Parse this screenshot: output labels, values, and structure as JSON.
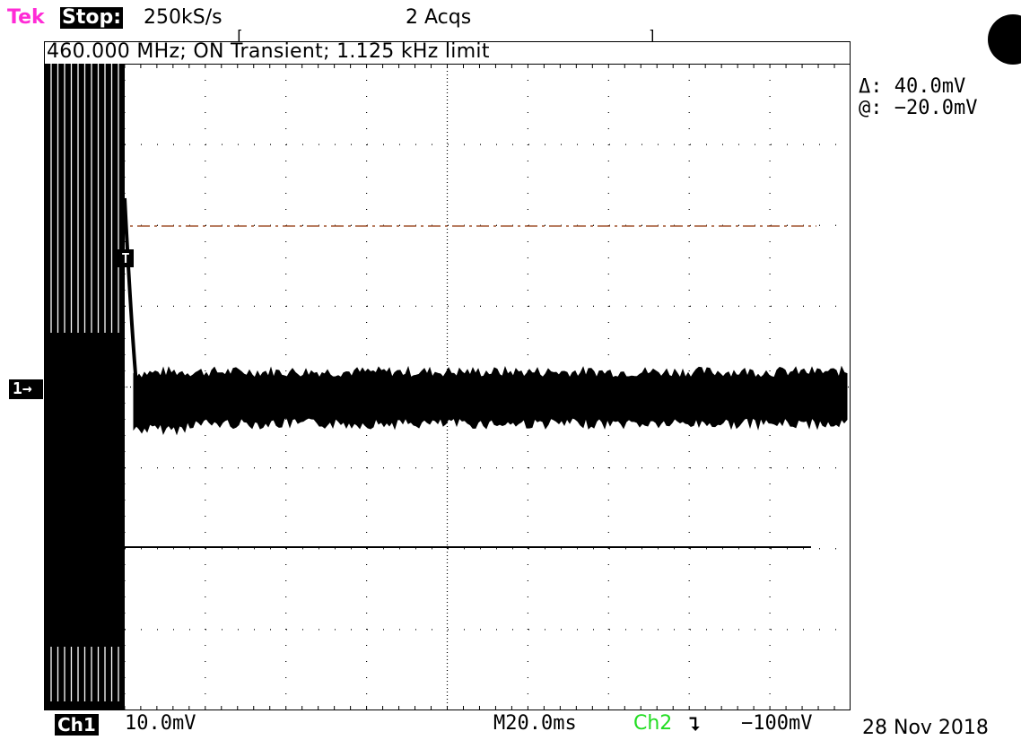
{
  "header": {
    "brand": "Tek",
    "run_state": "Stop:",
    "sample_rate": "250kS/s",
    "acquisitions": "2 Acqs"
  },
  "caption": "460.000 MHz; ON Transient; 1.125 kHz limit",
  "markers": {
    "ch1_ground": "1→",
    "trigger": "T"
  },
  "cursor_readout": {
    "delta": "Δ: 40.0mV",
    "at": "@: −20.0mV"
  },
  "footer": {
    "ch1_label": "Ch1",
    "ch1_scale": "10.0mV",
    "timebase": "M20.0ms",
    "trigger_source": "Ch2",
    "trigger_slope": "falling-edge-icon",
    "trigger_slope_glyph": "⮧",
    "trigger_level": "−100mV",
    "date": "28 Nov 2018"
  },
  "colors": {
    "brand": "#ff2bd6",
    "trigger_source": "#22dd22",
    "trace": "#000000",
    "cursor_line": "#a0522d"
  },
  "grid": {
    "divisions_x": 10,
    "divisions_y": 8
  }
}
